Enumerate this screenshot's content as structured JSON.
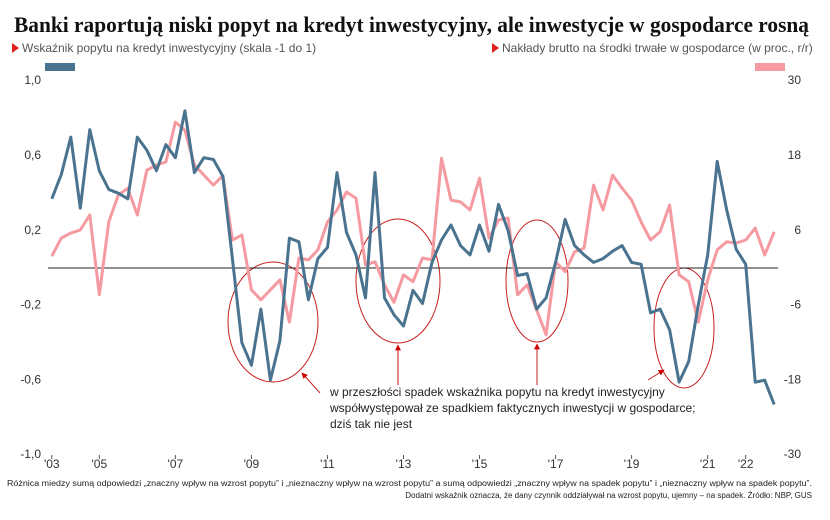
{
  "chart_data": {
    "type": "line",
    "title": "Banki raportują niski popyt na kredyt inwestycyjny, ale inwestycje w gospodarce rosną",
    "x": [
      2003.75,
      2004,
      2004.25,
      2004.5,
      2004.75,
      2005,
      2005.25,
      2005.5,
      2005.75,
      2006,
      2006.25,
      2006.5,
      2006.75,
      2007,
      2007.25,
      2007.5,
      2007.75,
      2008,
      2008.25,
      2008.5,
      2008.75,
      2009,
      2009.25,
      2009.5,
      2009.75,
      2010,
      2010.25,
      2010.5,
      2010.75,
      2011,
      2011.25,
      2011.5,
      2011.75,
      2012,
      2012.25,
      2012.5,
      2012.75,
      2013,
      2013.25,
      2013.5,
      2013.75,
      2014,
      2014.25,
      2014.5,
      2014.75,
      2015,
      2015.25,
      2015.5,
      2015.75,
      2016,
      2016.25,
      2016.5,
      2016.75,
      2017,
      2017.25,
      2017.5,
      2017.75,
      2018,
      2018.25,
      2018.5,
      2018.75,
      2019,
      2019.25,
      2019.5,
      2019.75,
      2020,
      2020.25,
      2020.5,
      2020.75,
      2021,
      2021.25,
      2021.5,
      2021.75,
      2022,
      2022.25,
      2022.5,
      2022.75
    ],
    "series": [
      {
        "name": "Wskaźnik popytu na kredyt inwestycyjny (skala -1 do 1)",
        "color": "#4a7390",
        "values": [
          0.37,
          0.5,
          0.7,
          0.32,
          0.74,
          0.52,
          0.42,
          0.4,
          0.37,
          0.7,
          0.63,
          0.52,
          0.66,
          0.59,
          0.84,
          0.51,
          0.59,
          0.58,
          0.49,
          0.05,
          -0.4,
          -0.52,
          -0.22,
          -0.6,
          -0.39,
          0.16,
          0.14,
          -0.17,
          0.05,
          0.11,
          0.51,
          0.19,
          0.07,
          -0.16,
          0.51,
          -0.16,
          -0.25,
          -0.31,
          -0.12,
          -0.19,
          0.03,
          0.15,
          0.23,
          0.12,
          0.07,
          0.23,
          0.09,
          0.34,
          0.2,
          -0.04,
          -0.03,
          -0.22,
          -0.16,
          0.03,
          0.26,
          0.12,
          0.07,
          0.03,
          0.05,
          0.09,
          0.12,
          0.03,
          0.02,
          -0.24,
          -0.22,
          -0.33,
          -0.61,
          -0.5,
          -0.2,
          0.07,
          0.57,
          0.31,
          0.1,
          0.02,
          -0.61,
          -0.6,
          -0.73
        ]
      },
      {
        "name": "Nakłady brutto na środki trwałe w gospodarce (w proc., r/r)",
        "color": "#f59aa0",
        "axis": "y2",
        "values": [
          1.9,
          4.8,
          5.6,
          6.1,
          8.5,
          -4.3,
          7.4,
          11.7,
          12.8,
          8.5,
          15.7,
          16.5,
          17.0,
          23.4,
          22.1,
          16.5,
          14.9,
          13.3,
          14.8,
          4.5,
          5.3,
          -3.5,
          -5.1,
          -3.5,
          -1.9,
          -8.7,
          1.6,
          1.3,
          2.9,
          7.4,
          9.3,
          12.2,
          11.2,
          0.5,
          1.0,
          -2.7,
          -5.5,
          -1.1,
          -2.2,
          1.6,
          1.3,
          17.6,
          10.9,
          10.6,
          9.3,
          14.4,
          4.8,
          7.7,
          8.0,
          -4.3,
          -2.7,
          -6.7,
          -10.7,
          1.0,
          -0.6,
          2.6,
          3.2,
          13.3,
          9.3,
          14.9,
          12.8,
          10.9,
          7.4,
          4.5,
          5.8,
          10.1,
          -1.1,
          -2.2,
          -8.7,
          -1.9,
          2.9,
          4.2,
          4.0,
          4.5,
          6.4,
          2.1,
          5.8
        ]
      }
    ],
    "xlim": [
      2003.65,
      2022.85
    ],
    "xticks": [
      {
        "value": 2003.75,
        "label": "'03"
      },
      {
        "value": 2005,
        "label": "'05"
      },
      {
        "value": 2007,
        "label": "'07"
      },
      {
        "value": 2009,
        "label": "'09"
      },
      {
        "value": 2011,
        "label": "'11"
      },
      {
        "value": 2013,
        "label": "'13"
      },
      {
        "value": 2015,
        "label": "'15"
      },
      {
        "value": 2017,
        "label": "'17"
      },
      {
        "value": 2019,
        "label": "'19"
      },
      {
        "value": 2021,
        "label": "'21"
      },
      {
        "value": 2022,
        "label": "'22"
      }
    ],
    "ylim": [
      -1,
      1
    ],
    "yticks": [
      {
        "value": 1,
        "label": "1,0"
      },
      {
        "value": 0.6,
        "label": "0,6"
      },
      {
        "value": 0.2,
        "label": "0,2"
      },
      {
        "value": -0.2,
        "label": "-0,2"
      },
      {
        "value": -0.6,
        "label": "-0,6"
      },
      {
        "value": -1,
        "label": "-1,0"
      }
    ],
    "y2lim": [
      -30,
      30
    ],
    "y2ticks": [
      30,
      18,
      6,
      -6,
      -18,
      -30
    ],
    "annotation": [
      "w przeszłości spadek wskaźnika popytu na kredyt inwestycyjny",
      "współwystępował ze spadkiem faktycznych inwestycji w gospodarce;",
      "dziś tak nie jest"
    ],
    "footnote": [
      "Różnica miedzy sumą odpowiedzi „znaczny wpływ na wzrost popytu” i „nieznaczny wpływ na wzrost popytu” a sumą odpowiedzi „znaczny wpływ na spadek popytu” i „nieznaczny wpływ na spadek popytu”.",
      "Dodatni wskaźnik oznacza, że dany czynnik oddziaływał na wzrost popytu, ujemny – na spadek. Źródło: NBP, GUS"
    ]
  }
}
